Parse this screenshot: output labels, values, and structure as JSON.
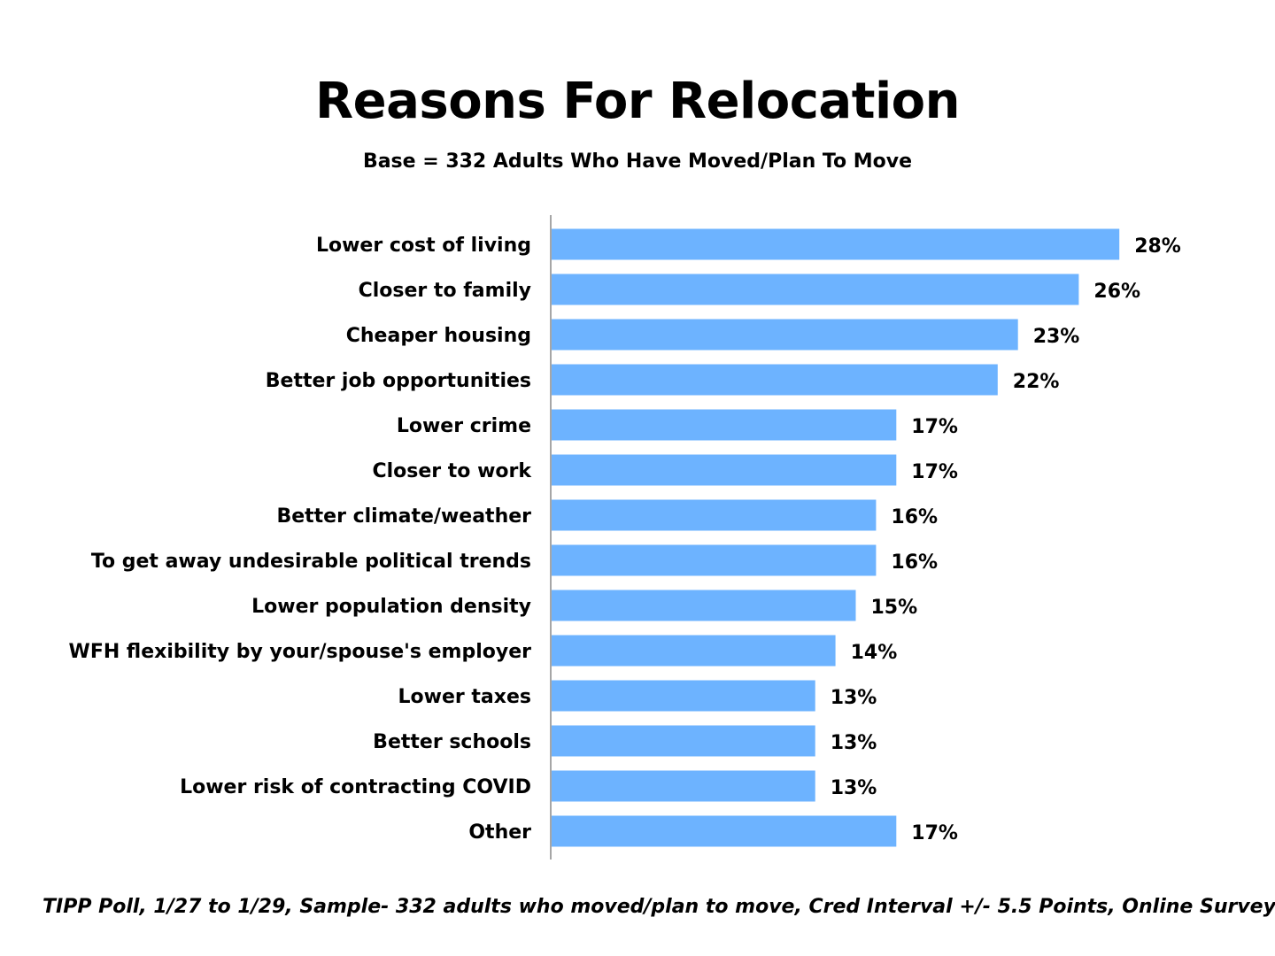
{
  "chart_data": {
    "type": "bar",
    "orientation": "horizontal",
    "title": "Reasons For Relocation",
    "subtitle": "Base = 332 Adults Who Have Moved/Plan To Move",
    "categories": [
      "Lower cost of living",
      "Closer to family",
      "Cheaper housing",
      "Better job opportunities",
      "Lower crime",
      "Closer to work",
      "Better climate/weather",
      "To get away undesirable political trends",
      "Lower population density",
      "WFH flexibility by your/spouse's employer",
      "Lower taxes",
      "Better schools",
      "Lower risk of contracting COVID",
      "Other"
    ],
    "values": [
      28,
      26,
      23,
      22,
      17,
      17,
      16,
      16,
      15,
      14,
      13,
      13,
      13,
      17
    ],
    "value_labels": [
      "28%",
      "26%",
      "23%",
      "22%",
      "17%",
      "17%",
      "16%",
      "16%",
      "15%",
      "14%",
      "13%",
      "13%",
      "13%",
      "17%"
    ],
    "unit": "%",
    "xlim": [
      0,
      30
    ],
    "bar_color": "#6DB3FF",
    "axis_color": "#A6A6A6"
  },
  "footnote": "TIPP Poll, 1/27 to 1/29, Sample- 332 adults who moved/plan to move, Cred Interval +/- 5.5 Points, Online Survey"
}
